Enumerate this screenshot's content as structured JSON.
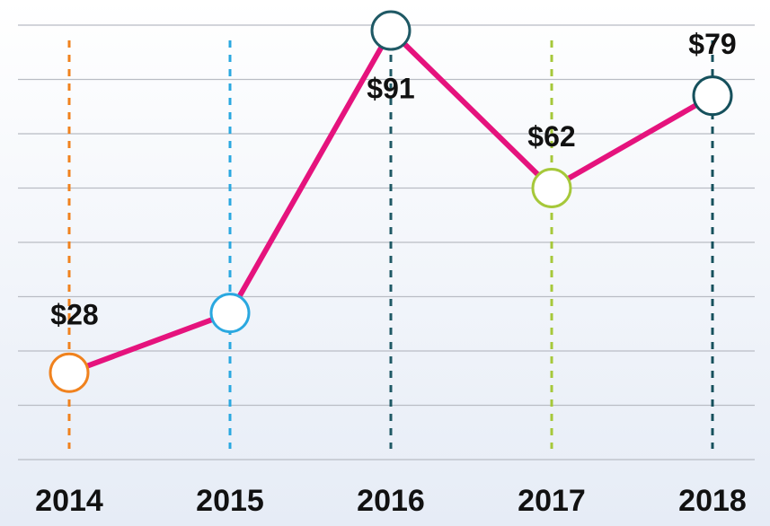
{
  "chart_data": {
    "type": "line",
    "categories": [
      "2014",
      "2015",
      "2016",
      "2017",
      "2018"
    ],
    "values": [
      28,
      39,
      91,
      62,
      79
    ],
    "value_labels": [
      "$28",
      null,
      "$91",
      "$62",
      "$79"
    ],
    "color": "#e5137d",
    "colors": [
      "#f0821e",
      "#2aa8e0",
      "#1f5965",
      "#a6c83a",
      "#15505c"
    ],
    "ylim": [
      12,
      92
    ]
  }
}
